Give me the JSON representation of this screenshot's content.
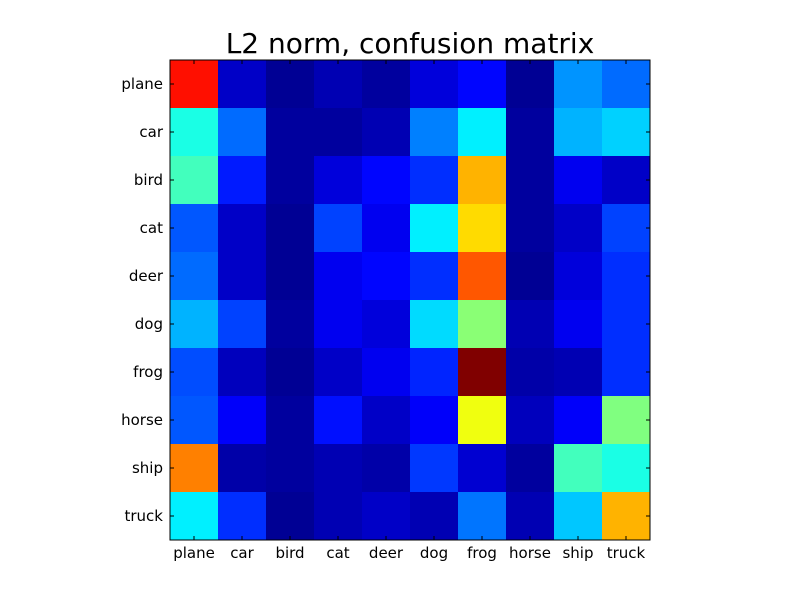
{
  "chart_data": {
    "type": "heatmap",
    "title": "L2 norm, confusion matrix",
    "xlabel": "",
    "ylabel": "",
    "colormap": "jet",
    "value_range": [
      0,
      1
    ],
    "grid": false,
    "colorbar": false,
    "rows": [
      "plane",
      "car",
      "bird",
      "cat",
      "deer",
      "dog",
      "frog",
      "horse",
      "ship",
      "truck"
    ],
    "cols": [
      "plane",
      "car",
      "bird",
      "cat",
      "deer",
      "dog",
      "frog",
      "horse",
      "ship",
      "truck"
    ],
    "values": [
      [
        0.86,
        0.07,
        0.02,
        0.05,
        0.03,
        0.09,
        0.13,
        0.02,
        0.27,
        0.23
      ],
      [
        0.4,
        0.23,
        0.03,
        0.03,
        0.05,
        0.25,
        0.36,
        0.03,
        0.3,
        0.33
      ],
      [
        0.44,
        0.15,
        0.03,
        0.09,
        0.13,
        0.17,
        0.7,
        0.03,
        0.11,
        0.07
      ],
      [
        0.21,
        0.07,
        0.02,
        0.19,
        0.11,
        0.36,
        0.66,
        0.03,
        0.07,
        0.19
      ],
      [
        0.23,
        0.07,
        0.02,
        0.11,
        0.13,
        0.17,
        0.79,
        0.02,
        0.09,
        0.17
      ],
      [
        0.3,
        0.19,
        0.03,
        0.11,
        0.09,
        0.34,
        0.51,
        0.05,
        0.11,
        0.17
      ],
      [
        0.2,
        0.06,
        0.02,
        0.07,
        0.11,
        0.16,
        1.0,
        0.04,
        0.05,
        0.17
      ],
      [
        0.21,
        0.12,
        0.03,
        0.14,
        0.07,
        0.12,
        0.61,
        0.06,
        0.12,
        0.5
      ],
      [
        0.75,
        0.04,
        0.03,
        0.05,
        0.04,
        0.18,
        0.08,
        0.03,
        0.44,
        0.4
      ],
      [
        0.36,
        0.17,
        0.02,
        0.05,
        0.07,
        0.05,
        0.24,
        0.05,
        0.32,
        0.7
      ]
    ]
  }
}
